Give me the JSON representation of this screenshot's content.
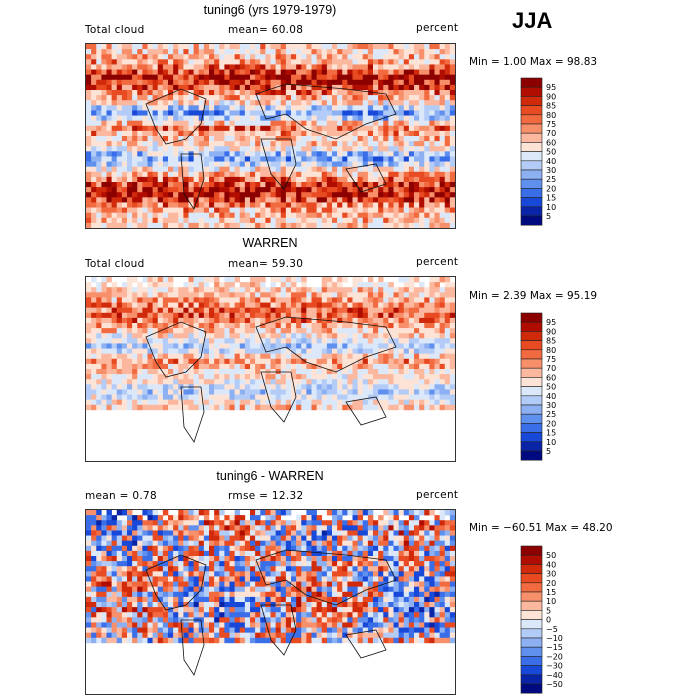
{
  "season": "JJA",
  "panels": [
    {
      "title": "tuning6 (yrs 1979-1979)",
      "left_label": "Total cloud",
      "mid_label": "mean=  60.08",
      "right_label": "percent",
      "minmax": "Min =   1.00 Max =  98.83",
      "colorbar": {
        "levels": [
          "95",
          "90",
          "85",
          "80",
          "75",
          "70",
          "60",
          "50",
          "40",
          "30",
          "25",
          "20",
          "15",
          "10",
          "5"
        ],
        "colors": [
          "#8c0000",
          "#b00d00",
          "#d12a0a",
          "#e84a22",
          "#f26a40",
          "#f78f6a",
          "#fbb89e",
          "#fde3d6",
          "#dbe8fa",
          "#b3ccf7",
          "#8cb0f2",
          "#6090ee",
          "#3a6ee8",
          "#1848d8",
          "#0a24a8",
          "#000a80"
        ]
      },
      "map": {
        "palette": "full",
        "coverage": "global",
        "regions": [
          {
            "kind": "band",
            "value": 88
          },
          {
            "kind": "blob",
            "value": 10
          },
          {
            "kind": "blob",
            "value": 20
          },
          {
            "kind": "blob",
            "value": 25
          },
          {
            "kind": "blob",
            "value": 75
          }
        ]
      }
    },
    {
      "title": "WARREN",
      "left_label": "Total cloud",
      "mid_label": "mean=  59.30",
      "right_label": "percent",
      "minmax": "Min =   2.39 Max =  95.19",
      "colorbar": {
        "levels": [
          "95",
          "90",
          "85",
          "80",
          "75",
          "70",
          "60",
          "50",
          "40",
          "30",
          "25",
          "20",
          "15",
          "10",
          "5"
        ],
        "colors": [
          "#8c0000",
          "#b00d00",
          "#d12a0a",
          "#e84a22",
          "#f26a40",
          "#f78f6a",
          "#fbb89e",
          "#fde3d6",
          "#dbe8fa",
          "#b3ccf7",
          "#8cb0f2",
          "#6090ee",
          "#3a6ee8",
          "#1848d8",
          "#0a24a8",
          "#000a80"
        ]
      },
      "map": {
        "palette": "full",
        "coverage": "partial",
        "regions": [
          {
            "kind": "band",
            "value": 70
          },
          {
            "kind": "blob",
            "value": 30
          },
          {
            "kind": "blob",
            "value": 60
          }
        ]
      }
    },
    {
      "title": "tuning6 - WARREN",
      "left_label": "mean =    0.78",
      "mid_label": "rmse =   12.32",
      "right_label": "percent",
      "minmax": "Min = −60.51 Max =  48.20",
      "colorbar": {
        "levels": [
          "50",
          "40",
          "30",
          "20",
          "15",
          "10",
          "5",
          "0",
          "−5",
          "−10",
          "−15",
          "−20",
          "−30",
          "−40",
          "−50"
        ],
        "colors": [
          "#8c0000",
          "#b00d00",
          "#d12a0a",
          "#e84a22",
          "#f26a40",
          "#f78f6a",
          "#fbb89e",
          "#fde3d6",
          "#dbe8fa",
          "#b3ccf7",
          "#8cb0f2",
          "#6090ee",
          "#3a6ee8",
          "#1848d8",
          "#0a24a8",
          "#000a80"
        ]
      },
      "map": {
        "palette": "diff",
        "coverage": "partial",
        "regions": [
          {
            "kind": "band",
            "value": 10
          },
          {
            "kind": "blob",
            "value": -20
          },
          {
            "kind": "blob",
            "value": 15
          }
        ]
      }
    }
  ]
}
